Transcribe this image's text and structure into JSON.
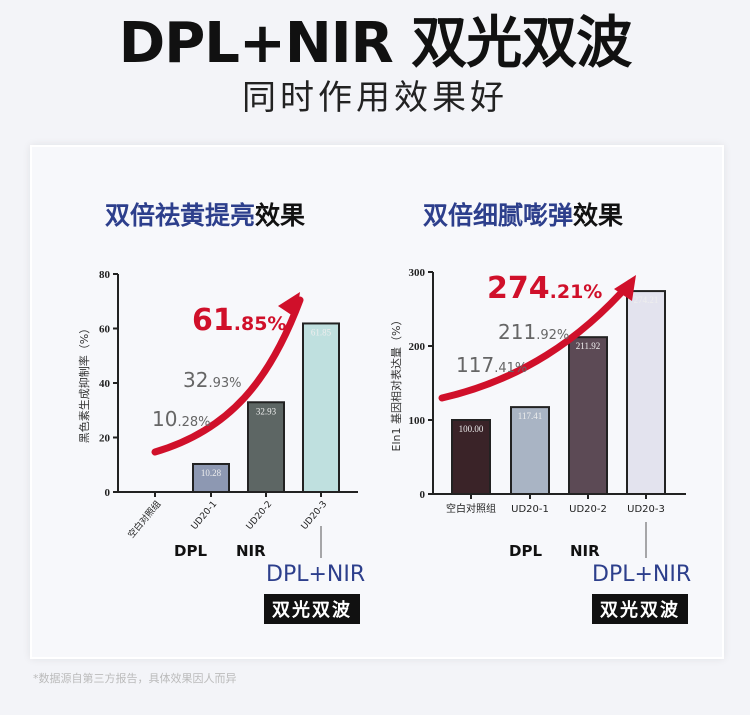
{
  "header": {
    "title": "DPL+NIR 双光双波",
    "subtitle": "同时作用效果好"
  },
  "footnote": "*数据源自第三方报告，具体效果因人而异",
  "labels": {
    "dpl": "DPL",
    "nir": "NIR",
    "dplnir": "DPL+NIR",
    "badge": "双光双波"
  },
  "colors": {
    "accent": "#d0102a",
    "blue": "#2d3f8c"
  },
  "chart_data": [
    {
      "type": "bar",
      "title_highlight": "双倍祛黄提亮",
      "title_rest": "效果",
      "ylabel": "黑色素生成抑制率（%）",
      "ylim": [
        0,
        80
      ],
      "yticks": [
        0,
        20,
        40,
        60,
        80
      ],
      "categories": [
        "空白对照组",
        "UD20-1",
        "UD20-2",
        "UD20-3"
      ],
      "values": [
        0,
        10.28,
        32.93,
        61.85
      ],
      "value_labels": [
        "",
        "10.28",
        "32.93",
        "61.85"
      ],
      "bar_colors": [
        "#ffffff",
        "#8d98b2",
        "#5d6664",
        "#bfe0df"
      ],
      "annotations": [
        {
          "int": "10",
          "dec": ".28%"
        },
        {
          "int": "32",
          "dec": ".93%"
        },
        {
          "int": "61",
          "dec": ".85%"
        }
      ]
    },
    {
      "type": "bar",
      "title_highlight": "双倍细腻嘭弹",
      "title_rest": "效果",
      "ylabel": "Eln1 基因相对表达量（%）",
      "ylim": [
        0,
        300
      ],
      "yticks": [
        0,
        100,
        200,
        300
      ],
      "categories": [
        "空白对照组",
        "UD20-1",
        "UD20-2",
        "UD20-3"
      ],
      "values": [
        100.0,
        117.41,
        211.92,
        274.21
      ],
      "value_labels": [
        "100.00",
        "117.41",
        "211.92",
        "274.21"
      ],
      "bar_colors": [
        "#3a2328",
        "#a9b4c4",
        "#5c4a55",
        "#e3e3ee"
      ],
      "annotations": [
        {
          "int": "117",
          "dec": ".41%"
        },
        {
          "int": "211",
          "dec": ".92%"
        },
        {
          "int": "274",
          "dec": ".21%"
        }
      ]
    }
  ]
}
